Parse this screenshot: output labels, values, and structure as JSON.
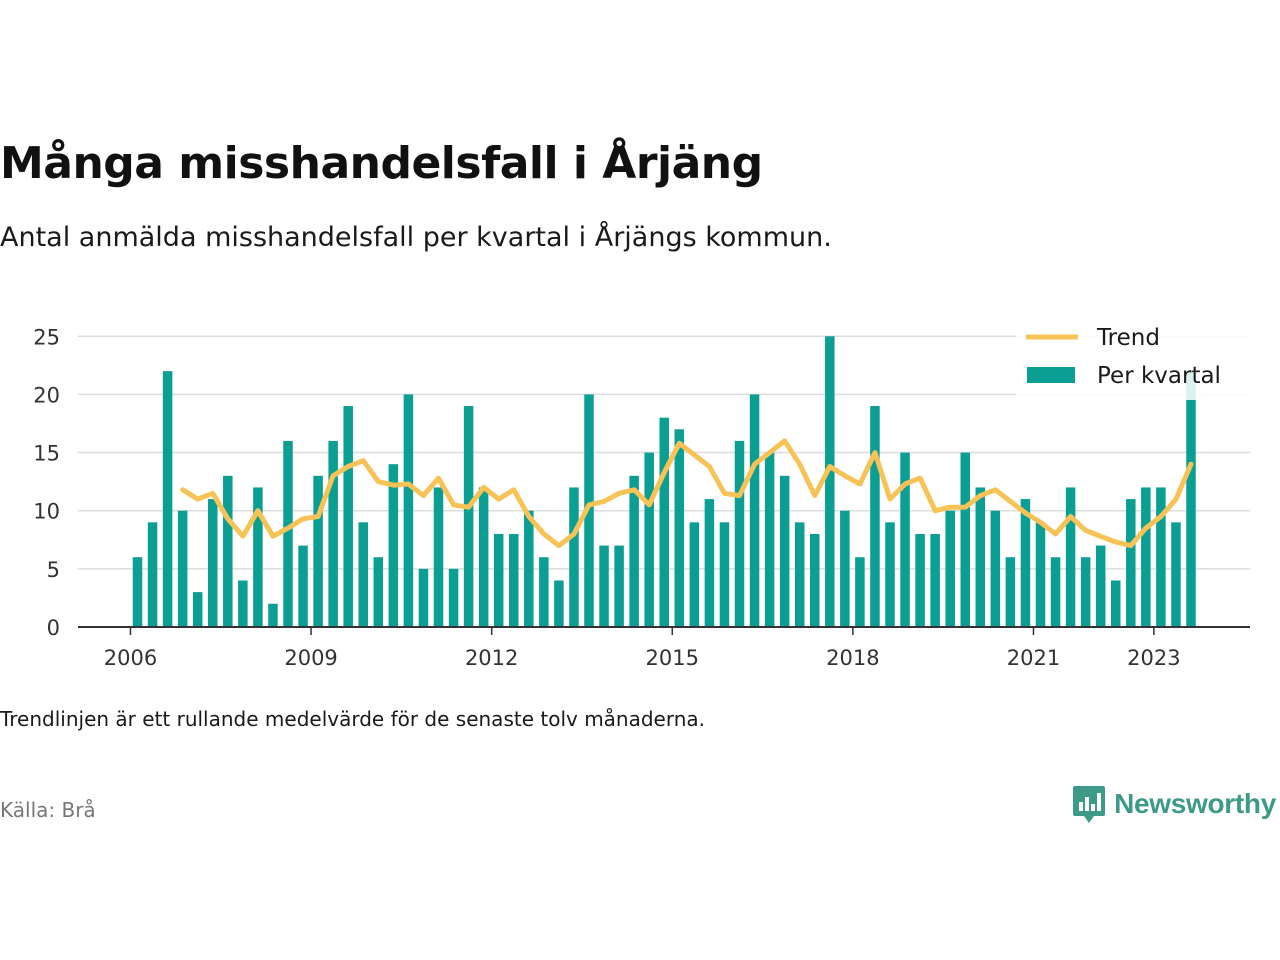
{
  "title": "Många misshandelsfall i Årjäng",
  "subtitle": "Antal anmälda misshandelsfall per kvartal i Årjängs kommun.",
  "note": "Trendlinjen är ett rullande medelvärde för de senaste tolv månaderna.",
  "source": "Källa: Brå",
  "brand": {
    "name": "Newsworthy",
    "logo_icon": "bar-chart-speech-bubble-icon"
  },
  "colors": {
    "bars": "#0b9e93",
    "trend": "#f7c356",
    "grid": "#dddddd",
    "axis": "#333333"
  },
  "chart_data": {
    "type": "bar",
    "x_type": "date-quarter",
    "start_quarter": "2006-Q1",
    "ylim": [
      0,
      27
    ],
    "yticks": [
      0,
      5,
      10,
      15,
      20,
      25
    ],
    "xtick_labels": [
      "2006",
      "2009",
      "2012",
      "2015",
      "2018",
      "2021",
      "2023"
    ],
    "xtick_years": [
      2006,
      2009,
      2012,
      2015,
      2018,
      2021,
      2023
    ],
    "legend": {
      "position": "top-right",
      "entries": [
        "Trend",
        "Per kvartal"
      ]
    },
    "grid": true,
    "series": [
      {
        "name": "Per kvartal",
        "type": "bar",
        "values": [
          6,
          9,
          22,
          10,
          3,
          11,
          13,
          4,
          12,
          2,
          16,
          7,
          13,
          16,
          19,
          9,
          6,
          14,
          20,
          5,
          12,
          5,
          19,
          12,
          8,
          8,
          10,
          6,
          4,
          12,
          20,
          7,
          7,
          13,
          15,
          18,
          17,
          9,
          11,
          9,
          16,
          20,
          15,
          13,
          9,
          8,
          25,
          10,
          6,
          19,
          9,
          15,
          8,
          8,
          10,
          15,
          12,
          10,
          6,
          11,
          9,
          6,
          12,
          6,
          7,
          4,
          11,
          12,
          12,
          9,
          22
        ]
      },
      {
        "name": "Trend",
        "type": "line",
        "values": [
          null,
          null,
          null,
          11.8,
          11,
          11.5,
          9.3,
          7.8,
          10,
          7.8,
          8.5,
          9.3,
          9.5,
          13,
          13.8,
          14.3,
          12.5,
          12.2,
          12.3,
          11.3,
          12.8,
          10.5,
          10.3,
          12,
          11,
          11.8,
          9.5,
          8,
          7,
          8,
          10.5,
          10.8,
          11.5,
          11.8,
          10.5,
          13.3,
          15.8,
          14.8,
          13.8,
          11.5,
          11.3,
          14,
          15,
          16,
          14,
          11.3,
          13.8,
          13,
          12.3,
          15,
          11,
          12.3,
          12.8,
          10,
          10.3,
          10.3,
          11.3,
          11.8,
          10.8,
          9.8,
          9,
          8,
          9.5,
          8.3,
          7.8,
          7.3,
          7,
          8.5,
          9.5,
          11,
          14
        ]
      }
    ]
  }
}
